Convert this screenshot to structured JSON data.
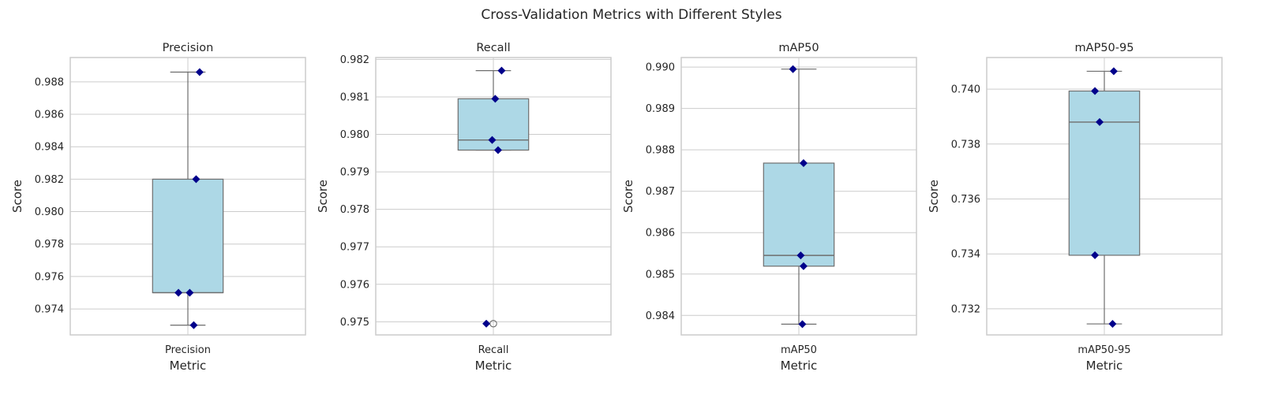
{
  "figure": {
    "suptitle": "Cross-Validation Metrics with Different Styles"
  },
  "colors": {
    "box_fill": "#add8e6",
    "box_edge": "#6e6e6e",
    "point": "#00008b",
    "grid": "#cccccc",
    "frame": "#cccccc",
    "flier_edge": "#6e6e6e"
  },
  "chart_data": [
    {
      "type": "box",
      "title": "Precision",
      "xlabel": "Metric",
      "ylabel": "Score",
      "category": "Precision",
      "ylim": [
        0.9724,
        0.9895
      ],
      "yticks": [
        0.974,
        0.976,
        0.978,
        0.98,
        0.982,
        0.984,
        0.986,
        0.988
      ],
      "tick_decimals": 3,
      "values": [
        0.9886,
        0.982,
        0.975,
        0.975,
        0.973
      ],
      "point_offsets": [
        0.05,
        0.035,
        -0.04,
        0.008,
        0.025
      ],
      "stats": {
        "whislo": 0.973,
        "q1": 0.975,
        "med": 0.975,
        "q3": 0.982,
        "whishi": 0.9886
      },
      "fliers": [],
      "grid": true
    },
    {
      "type": "box",
      "title": "Recall",
      "xlabel": "Metric",
      "ylabel": "Score",
      "category": "Recall",
      "ylim": [
        0.97465,
        0.98205
      ],
      "yticks": [
        0.975,
        0.976,
        0.977,
        0.978,
        0.979,
        0.98,
        0.981,
        0.982
      ],
      "tick_decimals": 3,
      "values": [
        0.9817,
        0.98095,
        0.97985,
        0.97958,
        0.97495
      ],
      "point_offsets": [
        0.035,
        0.008,
        -0.005,
        0.02,
        -0.03
      ],
      "stats": {
        "whislo": 0.97958,
        "q1": 0.97958,
        "med": 0.97985,
        "q3": 0.98095,
        "whishi": 0.9817
      },
      "fliers": [
        0.97495
      ],
      "grid": true
    },
    {
      "type": "box",
      "title": "mAP50",
      "xlabel": "Metric",
      "ylabel": "Score",
      "category": "mAP50",
      "ylim": [
        0.98353,
        0.99023
      ],
      "yticks": [
        0.984,
        0.985,
        0.986,
        0.987,
        0.988,
        0.989,
        0.99
      ],
      "tick_decimals": 3,
      "values": [
        0.98995,
        0.98768,
        0.98545,
        0.98519,
        0.98379
      ],
      "point_offsets": [
        -0.025,
        0.02,
        0.008,
        0.02,
        0.015
      ],
      "stats": {
        "whislo": 0.98379,
        "q1": 0.98519,
        "med": 0.98545,
        "q3": 0.98768,
        "whishi": 0.98995
      },
      "fliers": [],
      "grid": true
    },
    {
      "type": "box",
      "title": "mAP50-95",
      "xlabel": "Metric",
      "ylabel": "Score",
      "category": "mAP50-95",
      "ylim": [
        0.73105,
        0.74115
      ],
      "yticks": [
        0.732,
        0.734,
        0.736,
        0.738,
        0.74
      ],
      "tick_decimals": 3,
      "values": [
        0.74065,
        0.73993,
        0.7388,
        0.73395,
        0.73145
      ],
      "point_offsets": [
        0.04,
        -0.04,
        -0.02,
        -0.04,
        0.035
      ],
      "stats": {
        "whislo": 0.73145,
        "q1": 0.73395,
        "med": 0.7388,
        "q3": 0.73993,
        "whishi": 0.74065
      },
      "fliers": [],
      "grid": true
    }
  ]
}
